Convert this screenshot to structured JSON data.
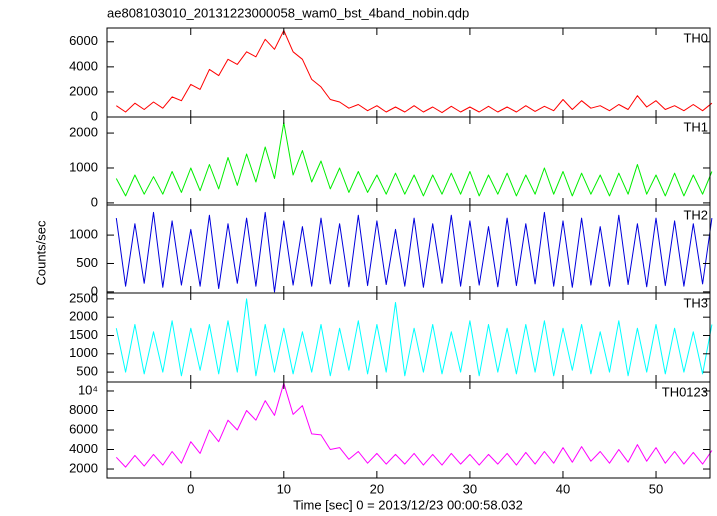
{
  "chart_data": {
    "type": "line",
    "title": "ae808103010_20131223000058_wam0_bst_4band_nobin.qdp",
    "xlabel": "Time [sec] 0 = 2013/12/23 00:00:58.032",
    "ylabel": "Counts/sec",
    "xlim": [
      -9,
      55.8
    ],
    "xticks": [
      0,
      10,
      20,
      30,
      40,
      50
    ],
    "x": [
      -8,
      -7,
      -6,
      -5,
      -4,
      -3,
      -2,
      -1,
      0,
      1,
      2,
      3,
      4,
      5,
      6,
      7,
      8,
      9,
      10,
      11,
      12,
      13,
      14,
      15,
      16,
      17,
      18,
      19,
      20,
      21,
      22,
      23,
      24,
      25,
      26,
      27,
      28,
      29,
      30,
      31,
      32,
      33,
      34,
      35,
      36,
      37,
      38,
      39,
      40,
      41,
      42,
      43,
      44,
      45,
      46,
      47,
      48,
      49,
      50,
      51,
      52,
      53,
      54,
      55,
      56
    ],
    "series": [
      {
        "name": "TH0",
        "color": "#ff0000",
        "ylim": [
          0,
          7100
        ],
        "yticks": [
          0,
          2000,
          4000,
          6000
        ],
        "values": [
          900,
          400,
          1100,
          600,
          1200,
          700,
          1600,
          1300,
          2600,
          2200,
          3800,
          3300,
          4600,
          4200,
          5200,
          4800,
          6200,
          5400,
          6900,
          5200,
          4600,
          3000,
          2400,
          1400,
          1200,
          700,
          1000,
          500,
          900,
          400,
          800,
          400,
          900,
          400,
          800,
          350,
          850,
          400,
          800,
          400,
          850,
          400,
          800,
          400,
          900,
          450,
          850,
          500,
          1400,
          600,
          1300,
          700,
          900,
          500,
          1000,
          600,
          1700,
          800,
          1300,
          600,
          900,
          500,
          1000,
          500,
          1100
        ]
      },
      {
        "name": "TH1",
        "color": "#00ee00",
        "ylim": [
          -60,
          2460
        ],
        "yticks": [
          0,
          1000,
          2000
        ],
        "values": [
          700,
          200,
          800,
          250,
          750,
          250,
          900,
          300,
          1000,
          350,
          1100,
          400,
          1300,
          500,
          1400,
          600,
          1600,
          700,
          2300,
          800,
          1500,
          600,
          1200,
          400,
          1000,
          300,
          900,
          300,
          800,
          250,
          850,
          250,
          800,
          200,
          800,
          250,
          850,
          250,
          900,
          200,
          800,
          250,
          850,
          200,
          800,
          250,
          1000,
          250,
          900,
          200,
          850,
          250,
          800,
          200,
          850,
          250,
          1100,
          250,
          800,
          200,
          850,
          200,
          800,
          250,
          900
        ]
      },
      {
        "name": "TH2",
        "color": "#0000dd",
        "ylim": [
          -20,
          1530
        ],
        "yticks": [
          0,
          500,
          1000
        ],
        "values": [
          1300,
          100,
          1200,
          150,
          1400,
          80,
          1250,
          120,
          1100,
          100,
          1350,
          60,
          1200,
          150,
          1300,
          100,
          1400,
          0,
          1250,
          120,
          1150,
          100,
          1300,
          140,
          1200,
          90,
          1350,
          110,
          1250,
          130,
          1100,
          100,
          1300,
          80,
          1200,
          150,
          1350,
          100,
          1250,
          120,
          1150,
          90,
          1300,
          110,
          1200,
          140,
          1400,
          100,
          1250,
          80,
          1300,
          120,
          1150,
          100,
          1350,
          130,
          1200,
          90,
          1300,
          110,
          1250,
          100,
          1200,
          140,
          1300
        ]
      },
      {
        "name": "TH3",
        "color": "#00ffff",
        "ylim": [
          230,
          2660
        ],
        "yticks": [
          500,
          1000,
          1500,
          2000,
          2500
        ],
        "values": [
          1700,
          500,
          1800,
          450,
          1600,
          500,
          1900,
          400,
          1700,
          550,
          1800,
          450,
          1900,
          500,
          2500,
          400,
          1800,
          500,
          1700,
          450,
          1600,
          500,
          1800,
          400,
          1700,
          550,
          1900,
          450,
          1800,
          500,
          2400,
          400,
          1700,
          500,
          1800,
          450,
          1600,
          500,
          1900,
          400,
          1800,
          500,
          1700,
          450,
          1800,
          500,
          1900,
          400,
          1700,
          550,
          1800,
          450,
          1600,
          500,
          1900,
          400,
          1700,
          500,
          1800,
          450,
          1700,
          500,
          1600,
          450,
          1800
        ]
      },
      {
        "name": "TH0123",
        "color": "#ff00ff",
        "ylim": [
          1080,
          10920
        ],
        "yticks": [
          2000,
          4000,
          6000,
          8000,
          {
            "value": 10000,
            "label": "10⁴"
          }
        ],
        "values": [
          3200,
          2200,
          3400,
          2300,
          3500,
          2400,
          3800,
          2600,
          4800,
          3600,
          6000,
          4800,
          7000,
          6000,
          8000,
          7000,
          9000,
          7500,
          10800,
          7600,
          8500,
          5600,
          5500,
          4000,
          4200,
          3000,
          3800,
          2600,
          3600,
          2500,
          3500,
          2500,
          3600,
          2400,
          3500,
          2400,
          3600,
          2500,
          3500,
          2400,
          3500,
          2500,
          3600,
          2400,
          3700,
          2500,
          3800,
          2600,
          4200,
          2700,
          4300,
          2800,
          3800,
          2600,
          4000,
          2700,
          4500,
          2800,
          4200,
          2600,
          3800,
          2500,
          3700,
          2500,
          3900
        ]
      }
    ]
  }
}
